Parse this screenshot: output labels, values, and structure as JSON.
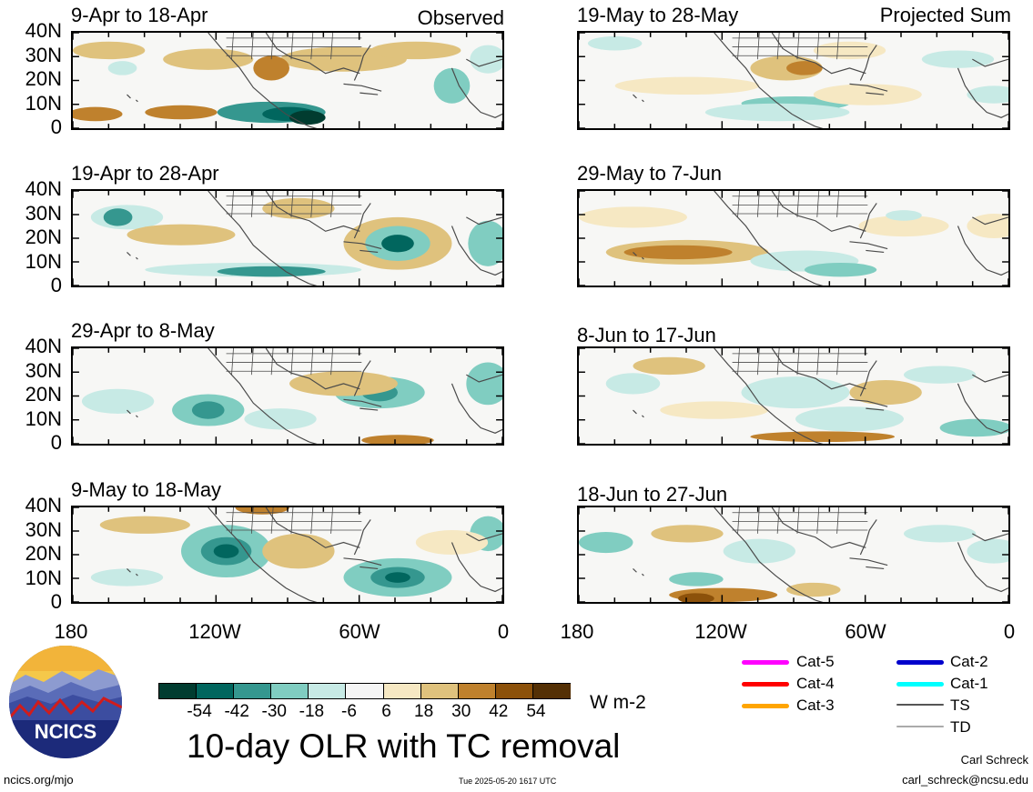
{
  "panels": [
    {
      "label": "9-Apr to 18-Apr",
      "corner": "Observed"
    },
    {
      "label": "19-Apr to 28-Apr",
      "corner": ""
    },
    {
      "label": "29-Apr to 8-May",
      "corner": ""
    },
    {
      "label": "9-May to 18-May",
      "corner": ""
    },
    {
      "label": "19-May to 28-May",
      "corner": "Projected Sum"
    },
    {
      "label": "29-May to 7-Jun",
      "corner": ""
    },
    {
      "label": "8-Jun to 17-Jun",
      "corner": ""
    },
    {
      "label": "18-Jun to 27-Jun",
      "corner": ""
    }
  ],
  "yticks": [
    "40N",
    "30N",
    "20N",
    "10N",
    "0"
  ],
  "xticks": [
    "180",
    "120W",
    "60W",
    "0"
  ],
  "colorbar": {
    "labels": [
      "-54",
      "-42",
      "-30",
      "-18",
      "-6",
      "6",
      "18",
      "30",
      "42",
      "54"
    ],
    "colors": [
      "#013c30",
      "#01665e",
      "#35978f",
      "#80cdc1",
      "#c7eae5",
      "#f5f5f5",
      "#f6e8c3",
      "#dfc27d",
      "#bf812d",
      "#8c510a",
      "#543005"
    ],
    "units": "W m-2"
  },
  "title": "10-day OLR with TC removal",
  "legend": [
    {
      "label": "Cat-5",
      "color": "#ff00ff"
    },
    {
      "label": "Cat-4",
      "color": "#ff0000"
    },
    {
      "label": "Cat-3",
      "color": "#ffa500"
    },
    {
      "label": "Cat-2",
      "color": "#0000cc"
    },
    {
      "label": "Cat-1",
      "color": "#00ffff"
    },
    {
      "label": "TS",
      "color": "#555555"
    },
    {
      "label": "TD",
      "color": "#aaaaaa"
    }
  ],
  "logo": {
    "text": "NCICS"
  },
  "footer": {
    "url": "ncics.org/mjo",
    "timestamp": "Tue 2025-05-20 1617 UTC",
    "author": "Carl Schreck",
    "email": "carl_schreck@ncsu.edu"
  }
}
